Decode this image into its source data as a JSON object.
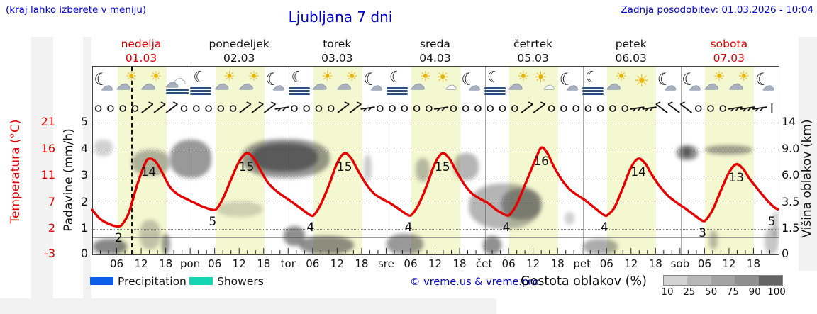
{
  "header": {
    "hint": "(kraj lahko izberete v meniju)",
    "title": "Ljubljana 7 dni",
    "updated": "Zadnja posodobitev: 01.03.2026 - 10:04"
  },
  "days": [
    {
      "name": "nedelja",
      "date": "01.03",
      "color": "#dd0000"
    },
    {
      "name": "ponedeljek",
      "date": "02.03",
      "color": "#111111"
    },
    {
      "name": "torek",
      "date": "03.03",
      "color": "#111111"
    },
    {
      "name": "sreda",
      "date": "04.03",
      "color": "#111111"
    },
    {
      "name": "četrtek",
      "date": "05.03",
      "color": "#111111"
    },
    {
      "name": "petek",
      "date": "06.03",
      "color": "#111111"
    },
    {
      "name": "sobota",
      "date": "07.03",
      "color": "#dd0000"
    }
  ],
  "axes": {
    "temp_title": "Temperatura (°C)",
    "temp_ticks": [
      "21",
      "16",
      "11",
      "7",
      "2",
      "-3"
    ],
    "precip_title": "Padavine (mm/h)",
    "precip_ticks": [
      "5",
      "4",
      "3",
      "2",
      "1",
      "0"
    ],
    "cloud_title": "Višina oblakov (km)",
    "cloud_ticks": [
      "14",
      "9.0",
      "6.0",
      "3.5",
      "1.5",
      "0"
    ],
    "time_ticks": [
      "06",
      "12",
      "18"
    ],
    "day_abbrevs": [
      "pon",
      "tor",
      "sre",
      "čet",
      "pet",
      "sob"
    ]
  },
  "legend": {
    "precipitation_label": "Precipitation",
    "precipitation_color": "#0b5fe8",
    "showers_label": "Showers",
    "showers_color": "#15d5b5",
    "copyright": "© vreme.us & vreme.pro",
    "density_label": "Gostota oblakov (%)",
    "density_stops": [
      "10",
      "25",
      "50",
      "75",
      "90",
      "100"
    ],
    "density_colors": [
      "#d3d3d3",
      "#b8b8b8",
      "#a3a3a3",
      "#8f8f8f",
      "#636363"
    ]
  },
  "chart_data": {
    "type": "line",
    "x_unit": "hours from nedelja 01.03 00:00",
    "x_range": [
      0,
      168
    ],
    "temp_axis_range": [
      -3,
      21
    ],
    "precip_axis_range": [
      0,
      5
    ],
    "cloud_axis_km_ticks": [
      0,
      1.5,
      3.5,
      6.0,
      9.0,
      14
    ],
    "now_hour": 9.5,
    "daylight_hours": [
      6,
      18
    ],
    "temperature": {
      "color": "#e60000",
      "points": [
        [
          0,
          5
        ],
        [
          2,
          3.3
        ],
        [
          4.5,
          2.3
        ],
        [
          6.5,
          2
        ],
        [
          7.5,
          2.5
        ],
        [
          9,
          4.5
        ],
        [
          11,
          9.5
        ],
        [
          13,
          13.5
        ],
        [
          14,
          14.3
        ],
        [
          15.5,
          13.8
        ],
        [
          17,
          12
        ],
        [
          19,
          9.2
        ],
        [
          21,
          7.8
        ],
        [
          23,
          7
        ],
        [
          25,
          6.3
        ],
        [
          27,
          5.6
        ],
        [
          29.5,
          5
        ],
        [
          30.5,
          5.2
        ],
        [
          32,
          7
        ],
        [
          34,
          10.5
        ],
        [
          36,
          13.8
        ],
        [
          37.8,
          15.3
        ],
        [
          39.5,
          14.5
        ],
        [
          41,
          12.5
        ],
        [
          43,
          10
        ],
        [
          45,
          8.5
        ],
        [
          47,
          7.4
        ],
        [
          49,
          6.4
        ],
        [
          51,
          5.3
        ],
        [
          53.5,
          4
        ],
        [
          54.5,
          4.2
        ],
        [
          56,
          6
        ],
        [
          58,
          9.5
        ],
        [
          60,
          13.5
        ],
        [
          61.8,
          15.3
        ],
        [
          63.5,
          14.3
        ],
        [
          65,
          12.3
        ],
        [
          67,
          9.8
        ],
        [
          69,
          8
        ],
        [
          71,
          7
        ],
        [
          73,
          6.2
        ],
        [
          75,
          5.2
        ],
        [
          77.5,
          4
        ],
        [
          78.5,
          4.3
        ],
        [
          80,
          6
        ],
        [
          82,
          9.5
        ],
        [
          84,
          13.5
        ],
        [
          85.8,
          15.3
        ],
        [
          87.5,
          14.3
        ],
        [
          89,
          12.3
        ],
        [
          91,
          9.8
        ],
        [
          93,
          8
        ],
        [
          95,
          7
        ],
        [
          97,
          6.2
        ],
        [
          99,
          5
        ],
        [
          101.5,
          4
        ],
        [
          102.5,
          4.3
        ],
        [
          104,
          6
        ],
        [
          106,
          9.5
        ],
        [
          108.5,
          14
        ],
        [
          110,
          16.3
        ],
        [
          111.5,
          15.3
        ],
        [
          113,
          13
        ],
        [
          115,
          10.5
        ],
        [
          117,
          8.7
        ],
        [
          119,
          7.6
        ],
        [
          121,
          6.6
        ],
        [
          123,
          5.4
        ],
        [
          125.5,
          4
        ],
        [
          126.5,
          4.2
        ],
        [
          128,
          5.5
        ],
        [
          130,
          9
        ],
        [
          132,
          12.7
        ],
        [
          133.8,
          14.3
        ],
        [
          135.5,
          13.4
        ],
        [
          137,
          11.5
        ],
        [
          139,
          9.3
        ],
        [
          141,
          7.6
        ],
        [
          143,
          6.4
        ],
        [
          145,
          5.4
        ],
        [
          147,
          4.3
        ],
        [
          149.5,
          3
        ],
        [
          150.5,
          3.3
        ],
        [
          152,
          5
        ],
        [
          154,
          8.5
        ],
        [
          156,
          11.8
        ],
        [
          157.8,
          13.3
        ],
        [
          159.5,
          12.4
        ],
        [
          161,
          10.7
        ],
        [
          163,
          8.8
        ],
        [
          165,
          7
        ],
        [
          167,
          5.5
        ],
        [
          168,
          5.1
        ]
      ]
    },
    "temp_labels": [
      {
        "t": 6.5,
        "v": 2,
        "text": "2"
      },
      {
        "t": 13.8,
        "v": 14,
        "text": "14"
      },
      {
        "t": 29.5,
        "v": 5,
        "text": "5"
      },
      {
        "t": 37.8,
        "v": 15,
        "text": "15"
      },
      {
        "t": 53.5,
        "v": 4,
        "text": "4"
      },
      {
        "t": 61.8,
        "v": 15,
        "text": "15"
      },
      {
        "t": 77.5,
        "v": 4,
        "text": "4"
      },
      {
        "t": 85.8,
        "v": 15,
        "text": "15"
      },
      {
        "t": 101.5,
        "v": 4,
        "text": "4"
      },
      {
        "t": 110,
        "v": 16,
        "text": "16"
      },
      {
        "t": 125.5,
        "v": 4,
        "text": "4"
      },
      {
        "t": 133.8,
        "v": 14,
        "text": "14"
      },
      {
        "t": 149.5,
        "v": 3,
        "text": "3"
      },
      {
        "t": 157.8,
        "v": 13,
        "text": "13"
      },
      {
        "t": 168,
        "v": 5,
        "text": "5"
      }
    ],
    "weather_icons": [
      "moon-cloud",
      "sun-cloud",
      "sun-cloud",
      "clouds-fog",
      "moon-fog",
      "sun-cloud",
      "sun-cloud",
      "moon-cloud",
      "moon-fog",
      "sun-cloud",
      "sun-cloud",
      "moon-cloud",
      "moon-fog",
      "sun-cloud",
      "sun-small-cloud",
      "moon-cloud",
      "moon-fog",
      "sun-cloud",
      "sun-small-cloud",
      "moon-cloud",
      "moon-fog",
      "sun-cloud",
      "sun",
      "moon-cloud",
      "moon-cloud",
      "sun-cloud",
      "sun-cloud",
      "moon-cloud"
    ],
    "wind_symbols": [
      "o",
      "o",
      "o",
      "o",
      "/",
      "/",
      "/",
      "o",
      "o",
      "o",
      "o",
      "o",
      "/",
      "/",
      "/",
      "-",
      "o",
      "o",
      "o",
      "o",
      "/",
      "/",
      "-",
      "o",
      "o",
      "o",
      "o",
      "o",
      "-",
      "o",
      "o",
      "o",
      "o",
      "o",
      "o",
      "/",
      "/",
      "o",
      "o",
      "o",
      "o",
      "o",
      "o",
      "o",
      "-",
      "-",
      "\\",
      "\\",
      "\\",
      "o",
      "o",
      "o",
      "-",
      "-",
      "-",
      "|"
    ],
    "clouds": [
      {
        "t0": 0.2,
        "t1": 4.8,
        "km0": 8.3,
        "km1": 10.8,
        "density": 0.25
      },
      {
        "t0": 9.5,
        "t1": 19,
        "km0": 6,
        "km1": 9,
        "density": 0.4
      },
      {
        "t0": 19,
        "t1": 29,
        "km0": 5.8,
        "km1": 10.8,
        "density": 0.55
      },
      {
        "t0": 36.5,
        "t1": 58,
        "km0": 5.8,
        "km1": 11,
        "density": 0.55
      },
      {
        "t0": 39,
        "t1": 55,
        "km0": 6.5,
        "km1": 10.2,
        "density": 0.75
      },
      {
        "t0": 11.5,
        "t1": 16.5,
        "km0": 0.3,
        "km1": 2.2,
        "density": 0.3
      },
      {
        "t0": 16.8,
        "t1": 19,
        "km0": 0,
        "km1": 1.2,
        "density": 0.55
      },
      {
        "t0": 0,
        "t1": 8.3,
        "km0": 0,
        "km1": 0.9,
        "density": 0.65
      },
      {
        "t0": 30.4,
        "t1": 41.5,
        "km0": 2.4,
        "km1": 3.6,
        "density": 0.22
      },
      {
        "t0": 46.8,
        "t1": 52,
        "km0": 0.5,
        "km1": 1.7,
        "density": 0.6
      },
      {
        "t0": 50.5,
        "t1": 64,
        "km0": 0,
        "km1": 1.1,
        "density": 0.6
      },
      {
        "t0": 66.3,
        "t1": 68.3,
        "km0": 5.5,
        "km1": 8.4,
        "density": 0.28
      },
      {
        "t0": 72,
        "t1": 81,
        "km0": 0,
        "km1": 1.2,
        "density": 0.55
      },
      {
        "t0": 79,
        "t1": 82.5,
        "km0": 5.5,
        "km1": 8,
        "density": 0.35
      },
      {
        "t0": 88.5,
        "t1": 94.5,
        "km0": 5.6,
        "km1": 8.6,
        "density": 0.4
      },
      {
        "t0": 92,
        "t1": 109.5,
        "km0": 1.5,
        "km1": 5.3,
        "density": 0.4
      },
      {
        "t0": 100,
        "t1": 110,
        "km0": 2.2,
        "km1": 4.8,
        "density": 0.5
      },
      {
        "t0": 95.5,
        "t1": 100,
        "km0": 0,
        "km1": 1.1,
        "density": 0.6
      },
      {
        "t0": 115.5,
        "t1": 118,
        "km0": 1.8,
        "km1": 2.8,
        "density": 0.25
      },
      {
        "t0": 120,
        "t1": 128.5,
        "km0": 0,
        "km1": 0.9,
        "density": 0.45
      },
      {
        "t0": 143,
        "t1": 148.2,
        "km0": 7.8,
        "km1": 9.8,
        "density": 0.6
      },
      {
        "t0": 144.5,
        "t1": 146.5,
        "km0": 8.2,
        "km1": 9.4,
        "density": 0.8
      },
      {
        "t0": 150,
        "t1": 161.5,
        "km0": 8.4,
        "km1": 9.8,
        "density": 0.5
      },
      {
        "t0": 151,
        "t1": 153,
        "km0": 0.3,
        "km1": 1.4,
        "density": 0.35
      },
      {
        "t0": 164.5,
        "t1": 168,
        "km0": 0,
        "km1": 1.6,
        "density": 0.3
      },
      {
        "t0": 166.5,
        "t1": 168,
        "km0": 1,
        "km1": 2.8,
        "density": 0.3
      }
    ]
  }
}
